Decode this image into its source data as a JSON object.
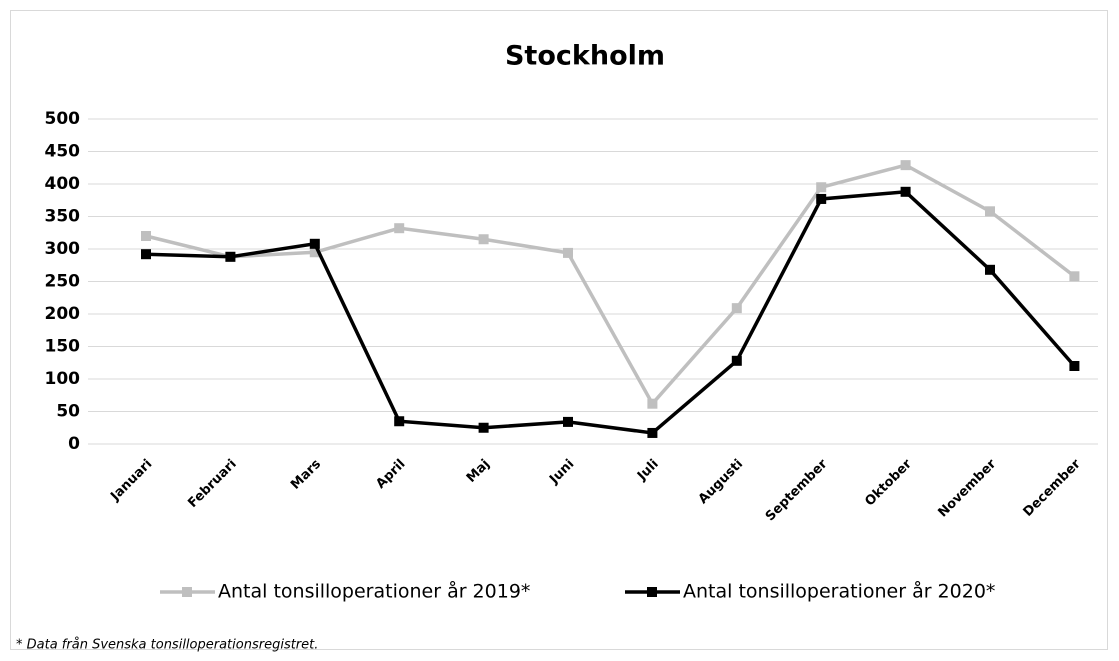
{
  "chart_data": {
    "type": "line",
    "title": "Stockholm",
    "categories": [
      "Januari",
      "Februari",
      "Mars",
      "April",
      "Maj",
      "Juni",
      "Juli",
      "Augusti",
      "September",
      "Oktober",
      "November",
      "December"
    ],
    "series": [
      {
        "name": "Antal tonsilloperationer år 2019*",
        "color": "#bfbfbf",
        "values": [
          320,
          288,
          295,
          332,
          315,
          294,
          62,
          209,
          395,
          429,
          358,
          258
        ]
      },
      {
        "name": "Antal tonsilloperationer år 2020*",
        "color": "#000000",
        "values": [
          292,
          288,
          308,
          35,
          25,
          34,
          17,
          128,
          377,
          388,
          268,
          120
        ]
      }
    ],
    "ylim": [
      0,
      500
    ],
    "yticks": [
      0,
      50,
      100,
      150,
      200,
      250,
      300,
      350,
      400,
      450,
      500
    ],
    "grid": true,
    "legend": "bottom",
    "footnote": "* Data från Svenska tonsilloperationsregistret."
  }
}
